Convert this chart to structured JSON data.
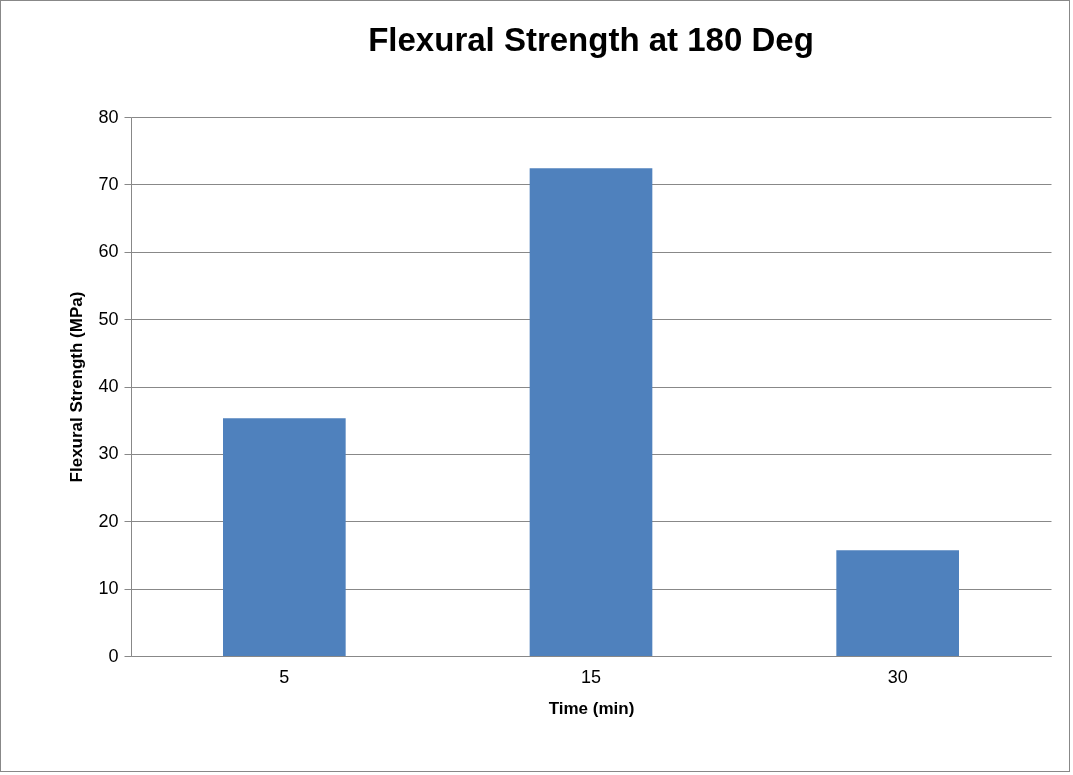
{
  "chart_data": {
    "type": "bar",
    "title": "Flexural Strength at 180 Deg",
    "xlabel": "Time (min)",
    "ylabel": "Flexural Strength (MPa)",
    "categories": [
      "5",
      "15",
      "30"
    ],
    "values": [
      35.3,
      72.4,
      15.7
    ],
    "color": "#4f81bd",
    "ylim": [
      0,
      80
    ],
    "yticks": [
      0,
      10,
      20,
      30,
      40,
      50,
      60,
      70,
      80
    ],
    "grid": "y"
  }
}
